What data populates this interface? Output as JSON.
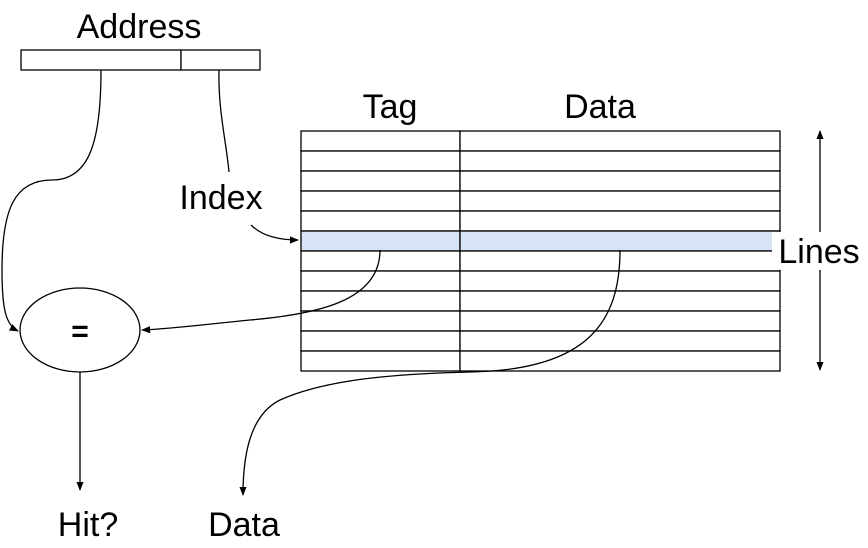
{
  "labels": {
    "address": "Address",
    "tag": "Tag",
    "data_header": "Data",
    "index": "Index",
    "lines": "Lines",
    "comparator": "=",
    "hit": "Hit?",
    "data_out": "Data"
  },
  "cache": {
    "row_count": 12,
    "highlighted_row": 5
  },
  "colors": {
    "highlight": "#d6e4f5",
    "stroke": "#000000"
  }
}
